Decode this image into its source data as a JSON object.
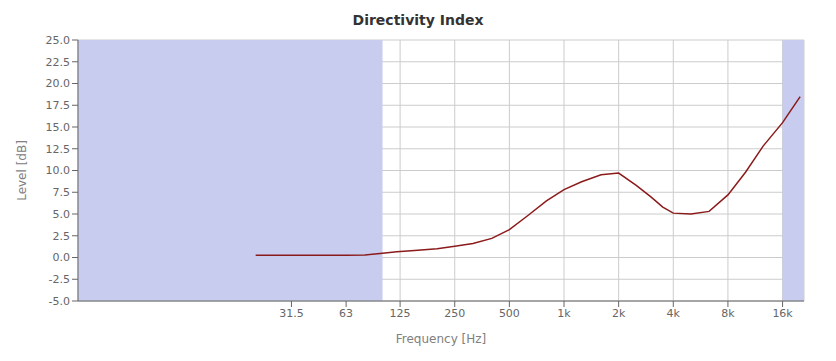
{
  "chart_data": {
    "type": "line",
    "title": "Directivity Index",
    "xlabel": "Frequency [Hz]",
    "ylabel": "Level [dB]",
    "log": "x",
    "grid": true,
    "xlim": [
      2.1,
      21000
    ],
    "xticks": [
      31.5,
      63,
      125,
      250,
      500,
      {
        "value": 1000,
        "label": "1k"
      },
      {
        "value": 2000,
        "label": "2k"
      },
      {
        "value": 4000,
        "label": "4k"
      },
      {
        "value": 8000,
        "label": "8k"
      },
      {
        "value": 16000,
        "label": "16k"
      }
    ],
    "ylim": [
      -5.0,
      25.0
    ],
    "yticks": [
      {
        "value": -5.0,
        "label": "-5.0"
      },
      -2.5,
      {
        "value": 0.0,
        "label": "0.0"
      },
      2.5,
      {
        "value": 5.0,
        "label": "5.0"
      },
      7.5,
      {
        "value": 10.0,
        "label": "10.0"
      },
      12.5,
      {
        "value": 15.0,
        "label": "15.0"
      },
      17.5,
      {
        "value": 20.0,
        "label": "20.0"
      },
      22.5,
      {
        "value": 25.0,
        "label": "25.0"
      }
    ],
    "shaded_ranges": [
      [
        2.1,
        100
      ],
      [
        16000,
        21000
      ]
    ],
    "shade_color": "#c8ccee",
    "color": "#8b1a1a",
    "x": [
      20,
      25,
      31.5,
      40,
      50,
      63,
      80,
      100,
      120,
      150,
      200,
      250,
      315,
      400,
      500,
      630,
      800,
      1000,
      1250,
      1600,
      2000,
      2500,
      3000,
      3500,
      4000,
      5000,
      6300,
      8000,
      10000,
      12500,
      16000,
      20000
    ],
    "values": [
      0.25,
      0.25,
      0.25,
      0.25,
      0.25,
      0.25,
      0.3,
      0.5,
      0.65,
      0.8,
      1.0,
      1.3,
      1.6,
      2.2,
      3.2,
      4.8,
      6.5,
      7.8,
      8.7,
      9.5,
      9.7,
      8.3,
      7.0,
      5.8,
      5.1,
      5.0,
      5.3,
      7.2,
      9.8,
      12.8,
      15.5,
      18.5
    ]
  }
}
